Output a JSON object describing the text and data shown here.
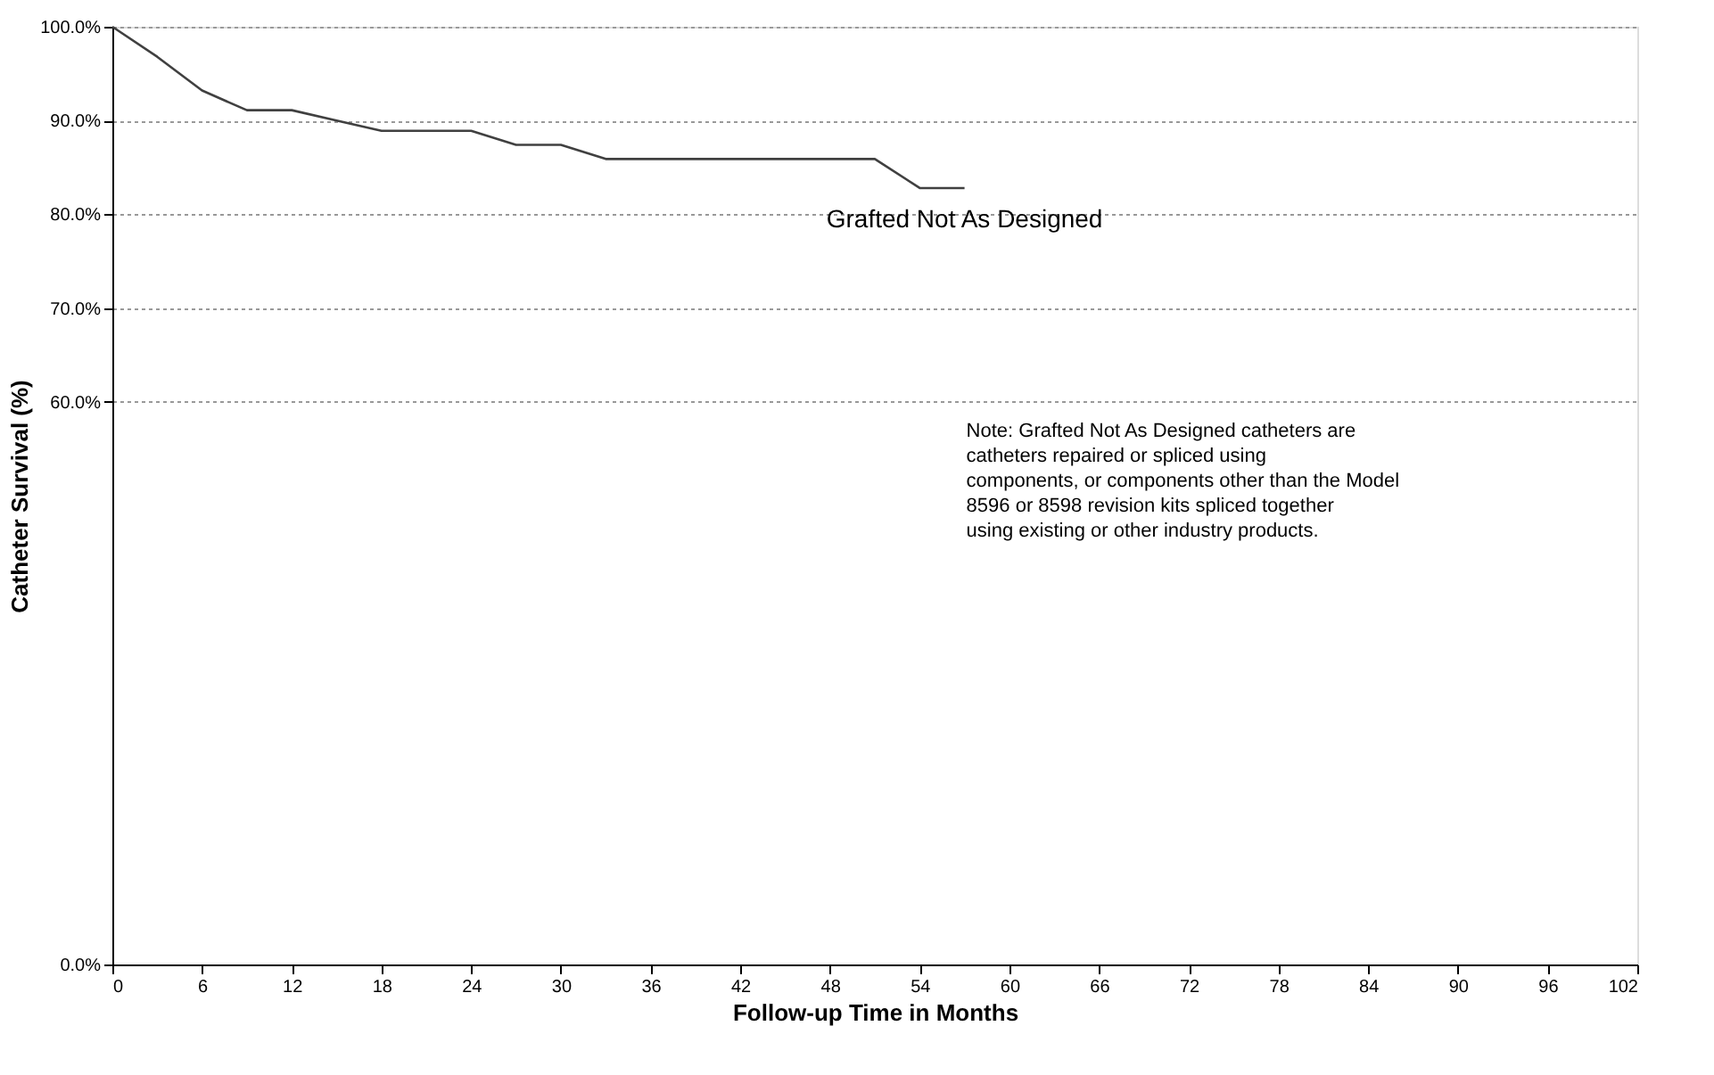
{
  "chart_data": {
    "type": "line",
    "xlabel": "Follow-up Time in Months",
    "ylabel": "Catheter Survival (%)",
    "x": [
      0,
      3,
      6,
      9,
      12,
      15,
      18,
      24,
      27,
      30,
      33,
      51,
      54,
      57
    ],
    "series": [
      {
        "name": "Grafted Not As Designed",
        "color": "#404040",
        "values": [
          100,
          96.8,
          93.2,
          91.1,
          91.1,
          90,
          88.9,
          88.9,
          87.4,
          87.4,
          85.9,
          85.9,
          82.8,
          82.8
        ]
      }
    ],
    "xlim": [
      0,
      102
    ],
    "xticks": [
      0,
      6,
      12,
      18,
      24,
      30,
      36,
      42,
      48,
      54,
      60,
      66,
      72,
      78,
      84,
      90,
      96,
      102
    ],
    "ylim": [
      0,
      100
    ],
    "yticks": [
      {
        "value": 0,
        "label": "0.0%"
      },
      {
        "value": 60,
        "label": "60.0%"
      },
      {
        "value": 70,
        "label": "70.0%"
      },
      {
        "value": 80,
        "label": "80.0%"
      },
      {
        "value": 90,
        "label": "90.0%"
      },
      {
        "value": 100,
        "label": "100.0%"
      }
    ],
    "grid": "y",
    "marker": "none",
    "line_style": "solid",
    "legend": false,
    "annotations": [
      "Note: Grafted Not As Designed catheters are catheters repaired or spliced using components, or components other than the Model 8596 or 8598 revision kits spliced together using existing or other industry products."
    ]
  }
}
